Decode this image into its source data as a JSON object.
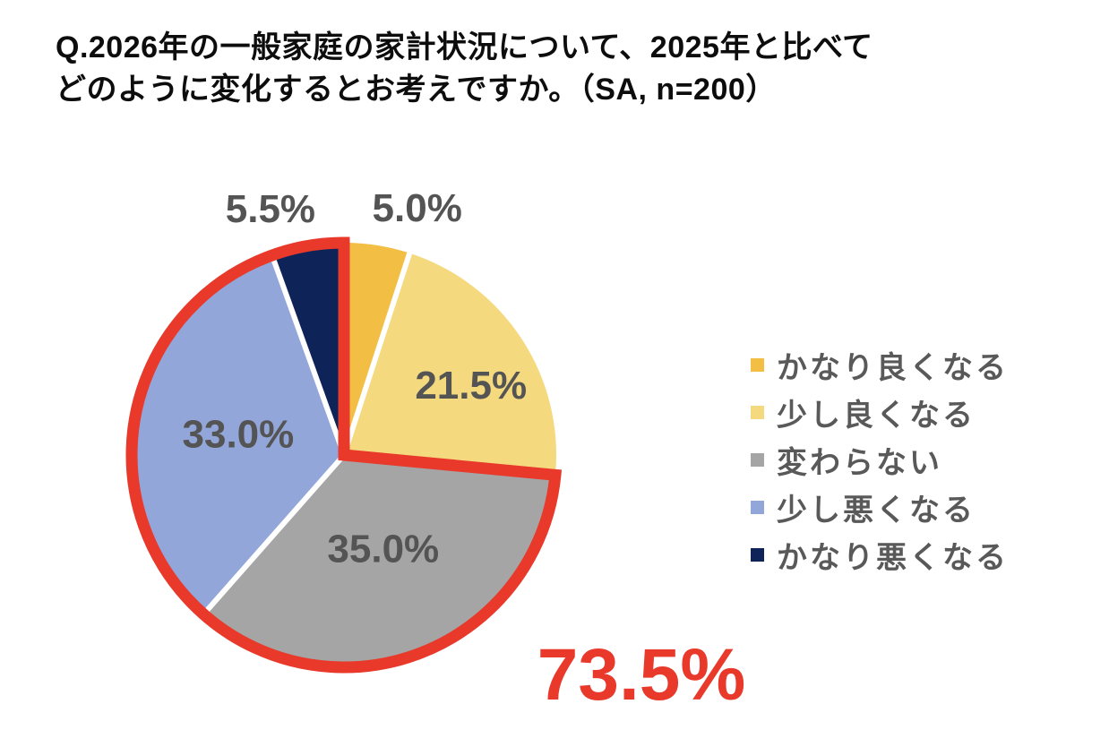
{
  "header": {
    "title_line1": "Q.2026年の一般家庭の家計状況について、2025年と比べて",
    "title_line2": "どのように変化するとお考えですか。（SA, n=200）"
  },
  "chart_data": {
    "type": "pie",
    "title": "Q.2026年の一般家庭の家計状況について、2025年と比べてどのように変化するとお考えですか。（SA, n=200）",
    "sample_size_note": "SA, n=200",
    "categories": [
      "かなり良くなる",
      "少し良くなる",
      "変わらない",
      "少し悪くなる",
      "かなり悪くなる"
    ],
    "values": [
      5.0,
      21.5,
      35.0,
      33.0,
      5.5
    ],
    "value_labels": [
      "5.0%",
      "21.5%",
      "35.0%",
      "33.0%",
      "5.5%"
    ],
    "colors": [
      "#F2BE44",
      "#F5D97E",
      "#A5A5A5",
      "#93A6D9",
      "#0E2459"
    ],
    "start_angle_deg": 0,
    "direction": "clockwise",
    "slice_gap_color": "#FFFFFF",
    "label_color": "#545454",
    "legend_position": "right",
    "legend_text_color": "#595959",
    "highlight": {
      "segments": [
        "変わらない",
        "少し悪くなる",
        "かなり悪くなる"
      ],
      "total": 73.5,
      "total_label": "73.5%",
      "color": "#E8392B"
    }
  }
}
